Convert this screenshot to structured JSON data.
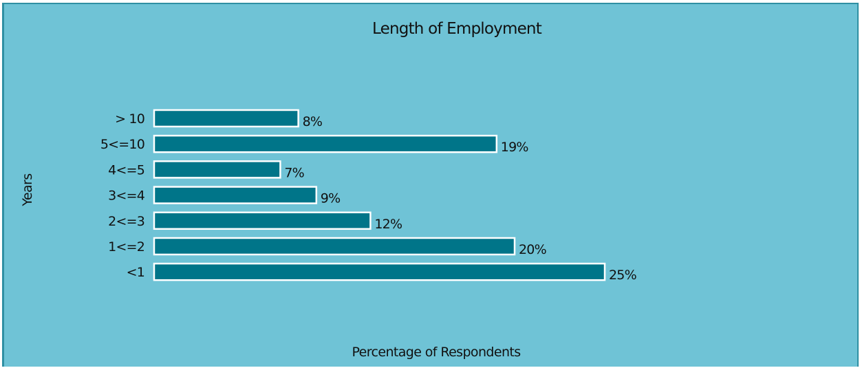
{
  "chart_data": {
    "type": "bar",
    "orientation": "horizontal",
    "title": "Length of Employment",
    "xlabel": "Percentage of Respondents",
    "ylabel": "Years",
    "categories": [
      "> 10",
      "5<=10",
      "4<=5",
      "3<=4",
      "2<=3",
      "1<=2",
      "<1"
    ],
    "values": [
      8,
      19,
      7,
      9,
      12,
      20,
      25
    ],
    "value_labels": [
      "8%",
      "19%",
      "7%",
      "9%",
      "12%",
      "20%",
      "25%"
    ],
    "unit": "%",
    "xlim": [
      0,
      25
    ],
    "grid": false,
    "legend": "none",
    "colors": {
      "background": "#6fc3d6",
      "bar_fill": "#007589",
      "bar_outline": "#ffffff",
      "frame": "#2f8fa3",
      "text": "#111111"
    }
  }
}
